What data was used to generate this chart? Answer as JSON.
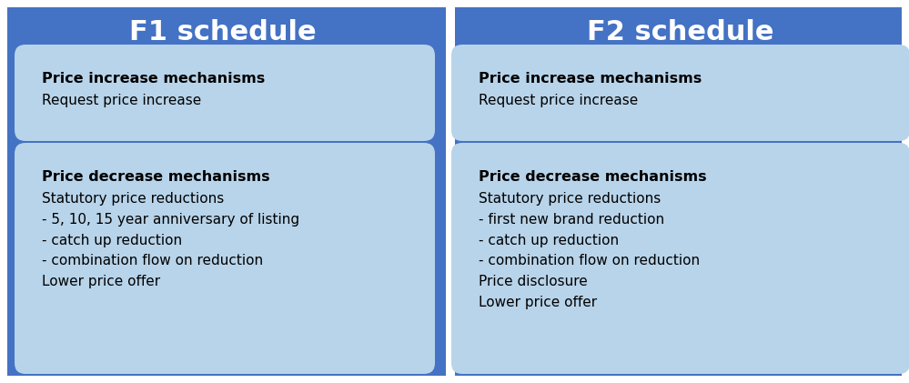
{
  "fig_bg": "#ffffff",
  "panel_bg": "#4472c4",
  "box_color": "#b8d4ea",
  "divider_color": "#ffffff",
  "title_color": "#ffffff",
  "text_color": "#000000",
  "title_fontsize": 22,
  "header_fontsize": 11.5,
  "body_fontsize": 11,
  "f1_title": "F1 schedule",
  "f2_title": "F2 schedule",
  "f1_increase_header": "Price increase mechanisms",
  "f1_increase_body": "Request price increase",
  "f1_decrease_header": "Price decrease mechanisms",
  "f1_decrease_body": "Statutory price reductions\n- 5, 10, 15 year anniversary of listing\n- catch up reduction\n- combination flow on reduction\nLower price offer",
  "f2_increase_header": "Price increase mechanisms",
  "f2_increase_body": "Request price increase",
  "f2_decrease_header": "Price decrease mechanisms",
  "f2_decrease_body": "Statutory price reductions\n- first new brand reduction\n- catch up reduction\n- combination flow on reduction\nPrice disclosure\nLower price offer"
}
